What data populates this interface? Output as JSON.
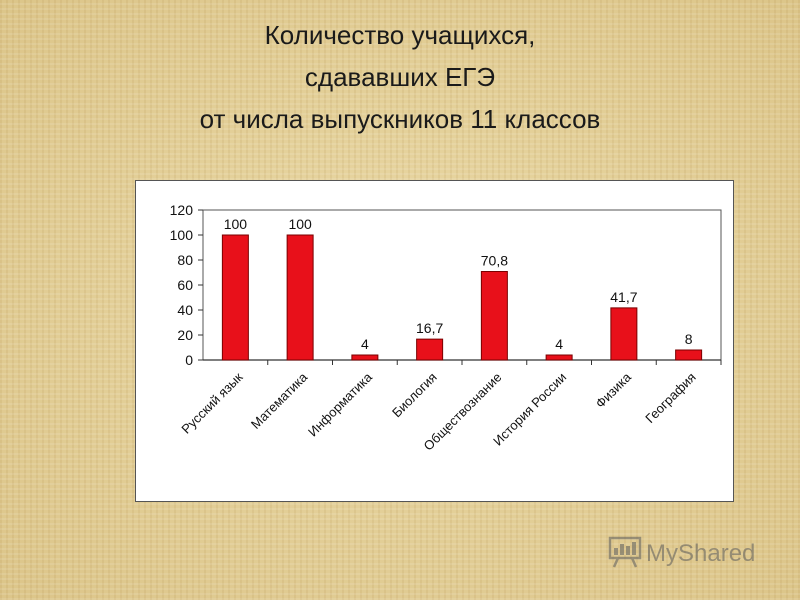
{
  "title": {
    "line1": "Количество учащихся,",
    "line2": "сдававших ЕГЭ",
    "line3": "от числа выпускников 11 классов"
  },
  "watermark": {
    "text": "MyShared",
    "icon": "presentation-board-icon"
  },
  "colors": {
    "bar": "#e8101a",
    "bar_stroke": "#7a0000",
    "axis": "#333333",
    "background": "#e3cf95"
  },
  "chart_data": {
    "type": "bar",
    "categories": [
      "Русский язык",
      "Математика",
      "Информатика",
      "Биология",
      "Обществознание",
      "История России",
      "Физика",
      "География"
    ],
    "values": [
      100,
      100,
      4,
      16.7,
      70.8,
      4,
      41.7,
      8
    ],
    "value_labels": [
      "100",
      "100",
      "4",
      "16,7",
      "70,8",
      "4",
      "41,7",
      "8"
    ],
    "yticks": [
      "0",
      "20",
      "40",
      "60",
      "80",
      "100",
      "120"
    ],
    "ylim": [
      0,
      120
    ],
    "title": "",
    "xlabel": "",
    "ylabel": "",
    "grid": false,
    "legend": false
  }
}
